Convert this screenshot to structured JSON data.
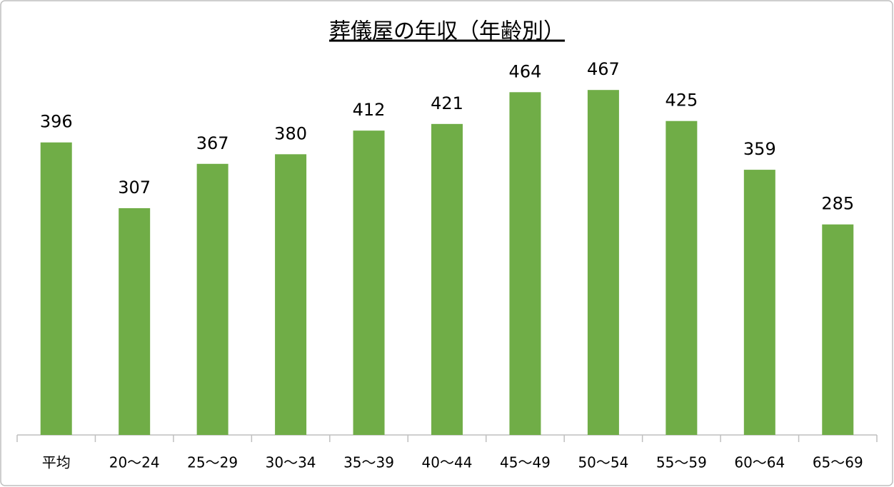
{
  "chart_data": {
    "type": "bar",
    "title": "葬儀屋の年収（年齢別）",
    "categories": [
      "平均",
      "20〜24",
      "25〜29",
      "30〜34",
      "35〜39",
      "40〜44",
      "45〜49",
      "50〜54",
      "55〜59",
      "60〜64",
      "65〜69"
    ],
    "values": [
      396,
      307,
      367,
      380,
      412,
      421,
      464,
      467,
      425,
      359,
      285
    ],
    "color": "#70ad47",
    "ylim": [
      0,
      500
    ]
  }
}
